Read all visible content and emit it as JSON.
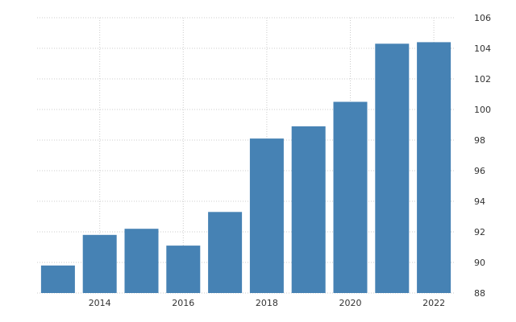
{
  "chart_data": {
    "type": "bar",
    "x": [
      2013,
      2014,
      2015,
      2016,
      2017,
      2018,
      2019,
      2020,
      2021,
      2022
    ],
    "values": [
      89.8,
      91.8,
      92.2,
      91.1,
      93.3,
      98.1,
      98.9,
      100.5,
      104.3,
      104.4
    ],
    "x_tick_labels": [
      "2014",
      "2016",
      "2018",
      "2020",
      "2022"
    ],
    "y_tick_labels": [
      "88",
      "90",
      "92",
      "94",
      "96",
      "98",
      "100",
      "102",
      "104",
      "106"
    ],
    "ylim": [
      88,
      106
    ],
    "y_axis_position": "right",
    "grid": true,
    "bar_color": "#4682b4",
    "grid_color": "#cccccc"
  }
}
